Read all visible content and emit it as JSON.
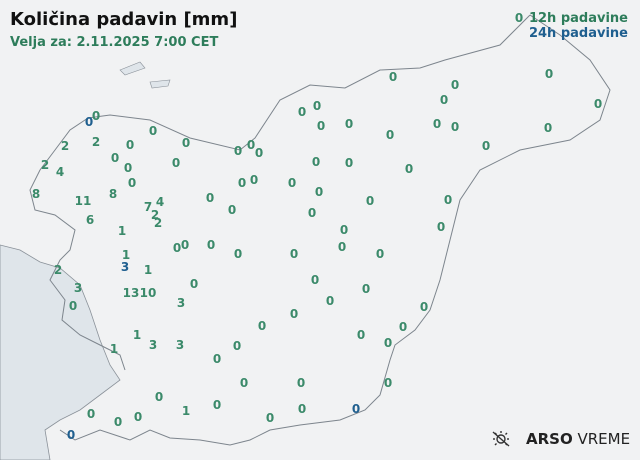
{
  "header": {
    "title": "Količina padavin [mm]",
    "valid": "Velja za: 2.11.2025 7:00 CET"
  },
  "legend": {
    "h12": "12h padavine",
    "h24": "24h padavine",
    "colors": {
      "h12": "#3b8a6a",
      "h24": "#1f5f8f"
    }
  },
  "logo": {
    "brand": "ARSO",
    "product": "VREME",
    "icon": "sun-cloud-icon"
  },
  "stations": [
    {
      "value": "0",
      "period": "12h"
    },
    {
      "value": "0",
      "period": "12h"
    },
    {
      "value": "0",
      "period": "12h"
    },
    {
      "value": "0",
      "period": "12h"
    },
    {
      "value": "0",
      "period": "12h"
    },
    {
      "value": "0",
      "period": "12h"
    },
    {
      "value": "0",
      "period": "12h"
    },
    {
      "value": "0",
      "period": "12h"
    },
    {
      "value": "0",
      "period": "12h"
    },
    {
      "value": "0",
      "period": "24h"
    },
    {
      "value": "0",
      "period": "12h"
    },
    {
      "value": "0",
      "period": "12h"
    },
    {
      "value": "0",
      "period": "12h"
    },
    {
      "value": "2",
      "period": "12h"
    },
    {
      "value": "2",
      "period": "12h"
    },
    {
      "value": "0",
      "period": "12h"
    },
    {
      "value": "0",
      "period": "12h"
    },
    {
      "value": "0",
      "period": "12h"
    },
    {
      "value": "0",
      "period": "12h"
    },
    {
      "value": "0",
      "period": "12h"
    },
    {
      "value": "0",
      "period": "12h"
    },
    {
      "value": "0",
      "period": "12h"
    },
    {
      "value": "0",
      "period": "12h"
    },
    {
      "value": "0",
      "period": "12h"
    },
    {
      "value": "0",
      "period": "12h"
    },
    {
      "value": "0",
      "period": "12h"
    },
    {
      "value": "0",
      "period": "12h"
    },
    {
      "value": "0",
      "period": "12h"
    },
    {
      "value": "2",
      "period": "12h"
    },
    {
      "value": "4",
      "period": "12h"
    },
    {
      "value": "8",
      "period": "12h"
    },
    {
      "value": "11",
      "period": "12h"
    },
    {
      "value": "8",
      "period": "12h"
    },
    {
      "value": "0",
      "period": "12h"
    },
    {
      "value": "0",
      "period": "12h"
    },
    {
      "value": "0",
      "period": "12h"
    },
    {
      "value": "0",
      "period": "12h"
    },
    {
      "value": "0",
      "period": "12h"
    },
    {
      "value": "0",
      "period": "12h"
    },
    {
      "value": "0",
      "period": "12h"
    },
    {
      "value": "7",
      "period": "12h"
    },
    {
      "value": "4",
      "period": "12h"
    },
    {
      "value": "2",
      "period": "12h"
    },
    {
      "value": "2",
      "period": "12h"
    },
    {
      "value": "0",
      "period": "12h"
    },
    {
      "value": "0",
      "period": "12h"
    },
    {
      "value": "0",
      "period": "12h"
    },
    {
      "value": "0",
      "period": "12h"
    },
    {
      "value": "0",
      "period": "12h"
    },
    {
      "value": "0",
      "period": "12h"
    },
    {
      "value": "6",
      "period": "12h"
    },
    {
      "value": "1",
      "period": "12h"
    },
    {
      "value": "0",
      "period": "12h"
    },
    {
      "value": "0",
      "period": "12h"
    },
    {
      "value": "0",
      "period": "12h"
    },
    {
      "value": "0",
      "period": "12h"
    },
    {
      "value": "0",
      "period": "12h"
    },
    {
      "value": "0",
      "period": "12h"
    },
    {
      "value": "0",
      "period": "12h"
    },
    {
      "value": "0",
      "period": "12h"
    },
    {
      "value": "0",
      "period": "12h"
    },
    {
      "value": "1",
      "period": "12h"
    },
    {
      "value": "3",
      "period": "24h"
    },
    {
      "value": "1",
      "period": "12h"
    },
    {
      "value": "2",
      "period": "12h"
    },
    {
      "value": "3",
      "period": "12h"
    },
    {
      "value": "0",
      "period": "12h"
    },
    {
      "value": "13",
      "period": "12h"
    },
    {
      "value": "10",
      "period": "12h"
    },
    {
      "value": "0",
      "period": "12h"
    },
    {
      "value": "3",
      "period": "12h"
    },
    {
      "value": "0",
      "period": "12h"
    },
    {
      "value": "0",
      "period": "12h"
    },
    {
      "value": "0",
      "period": "12h"
    },
    {
      "value": "0",
      "period": "12h"
    },
    {
      "value": "0",
      "period": "12h"
    },
    {
      "value": "0",
      "period": "12h"
    },
    {
      "value": "1",
      "period": "12h"
    },
    {
      "value": "1",
      "period": "12h"
    },
    {
      "value": "3",
      "period": "12h"
    },
    {
      "value": "3",
      "period": "12h"
    },
    {
      "value": "0",
      "period": "12h"
    },
    {
      "value": "0",
      "period": "12h"
    },
    {
      "value": "0",
      "period": "12h"
    },
    {
      "value": "0",
      "period": "12h"
    },
    {
      "value": "0",
      "period": "12h"
    },
    {
      "value": "0",
      "period": "12h"
    },
    {
      "value": "0",
      "period": "12h"
    },
    {
      "value": "0",
      "period": "12h"
    },
    {
      "value": "0",
      "period": "12h"
    },
    {
      "value": "1",
      "period": "12h"
    },
    {
      "value": "0",
      "period": "12h"
    },
    {
      "value": "0",
      "period": "12h"
    },
    {
      "value": "0",
      "period": "12h"
    },
    {
      "value": "0",
      "period": "12h"
    },
    {
      "value": "0",
      "period": "12h"
    },
    {
      "value": "0",
      "period": "12h"
    },
    {
      "value": "0",
      "period": "24h"
    },
    {
      "value": "0",
      "period": "24h"
    }
  ]
}
